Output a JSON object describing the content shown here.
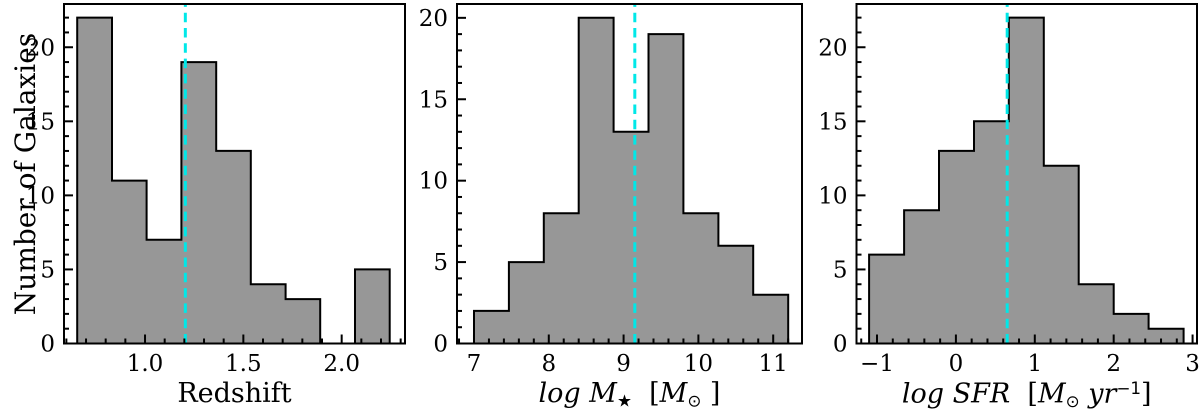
{
  "figure": {
    "ylabel": "Number of Galaxies",
    "colors": {
      "background": "#ffffff",
      "bar_fill": "#979797",
      "bar_edge": "#000000",
      "median_line": "#00e8e8",
      "axis": "#000000",
      "text": "#000000"
    }
  },
  "chart_data": [
    {
      "type": "histogram",
      "panel": "redshift-distribution",
      "xlabel_text": "Redshift",
      "ylabel": "Number of Galaxies",
      "xlabel_segments": [
        {
          "t": "Redshift",
          "s": "rm"
        }
      ],
      "bin_edges": [
        0.655,
        0.832,
        1.008,
        1.185,
        1.362,
        1.538,
        1.715,
        1.891,
        2.068,
        2.244
      ],
      "counts": [
        22,
        11,
        7,
        19,
        13,
        4,
        3,
        0,
        5
      ],
      "median_x": 1.205,
      "xlim": [
        0.588,
        2.322
      ],
      "ylim": [
        0,
        22.92
      ],
      "x_major_ticks": [
        1.0,
        1.5,
        2.0
      ],
      "x_major_labels": [
        "1.0",
        "1.5",
        "2.0"
      ],
      "x_major_step": 0.5,
      "x_minor_step": 0.1,
      "y_major_ticks": [
        0,
        5,
        10,
        15,
        20
      ],
      "y_major_labels": [
        "0",
        "5",
        "10",
        "15",
        "20"
      ],
      "y_minor_step": 1,
      "grid": false,
      "median_line_style": "dashed"
    },
    {
      "type": "histogram",
      "panel": "stellar-mass-distribution",
      "xlabel_text": "log M⋆  [M⊙]",
      "ylabel": "Number of Galaxies",
      "xlabel_segments": [
        {
          "t": "log M",
          "s": "it"
        },
        {
          "t": "★",
          "s": "sub"
        },
        {
          "t": "  [",
          "s": "rm"
        },
        {
          "t": "M",
          "s": "it"
        },
        {
          "t": "⊙",
          "s": "sub"
        },
        {
          "t": " ]",
          "s": "rm"
        }
      ],
      "bin_edges": [
        7.0,
        7.467,
        7.933,
        8.4,
        8.867,
        9.333,
        9.8,
        10.267,
        10.733,
        11.2
      ],
      "counts": [
        2,
        5,
        8,
        20,
        13,
        19,
        8,
        6,
        3
      ],
      "median_x": 9.15,
      "xlim": [
        6.773,
        11.385
      ],
      "ylim": [
        0,
        20.85
      ],
      "x_major_ticks": [
        7,
        8,
        9,
        10,
        11
      ],
      "x_major_labels": [
        "7",
        "8",
        "9",
        "10",
        "11"
      ],
      "x_major_step": 1,
      "x_minor_step": 0.2,
      "y_major_ticks": [
        0,
        5,
        10,
        15,
        20
      ],
      "y_major_labels": [
        "0",
        "5",
        "10",
        "15",
        "20"
      ],
      "y_minor_step": 1,
      "grid": false,
      "median_line_style": "dashed"
    },
    {
      "type": "histogram",
      "panel": "sfr-distribution",
      "xlabel_text": "log SFR  [M⊙ yr⁻¹]",
      "ylabel": "Number of Galaxies",
      "xlabel_segments": [
        {
          "t": "log SFR",
          "s": "it"
        },
        {
          "t": "  [",
          "s": "rm"
        },
        {
          "t": "M",
          "s": "it"
        },
        {
          "t": "⊙",
          "s": "sub"
        },
        {
          "t": " yr",
          "s": "it"
        },
        {
          "t": "−1",
          "s": "sup"
        },
        {
          "t": "]",
          "s": "rm"
        }
      ],
      "bin_edges": [
        -1.1,
        -0.657,
        -0.214,
        0.229,
        0.671,
        1.114,
        1.557,
        2.0,
        2.443,
        2.886
      ],
      "counts": [
        6,
        9,
        13,
        15,
        22,
        12,
        4,
        2,
        1
      ],
      "median_x": 0.65,
      "xlim": [
        -1.26,
        3.056
      ],
      "ylim": [
        0,
        22.92
      ],
      "x_major_ticks": [
        -1,
        0,
        1,
        2,
        3
      ],
      "x_major_labels": [
        "−1",
        "0",
        "1",
        "2",
        "3"
      ],
      "x_major_step": 1,
      "x_minor_step": 0.2,
      "y_major_ticks": [
        0,
        5,
        10,
        15,
        20
      ],
      "y_major_labels": [
        "0",
        "5",
        "10",
        "15",
        "20"
      ],
      "y_minor_step": 1,
      "grid": false,
      "median_line_style": "dashed"
    }
  ]
}
